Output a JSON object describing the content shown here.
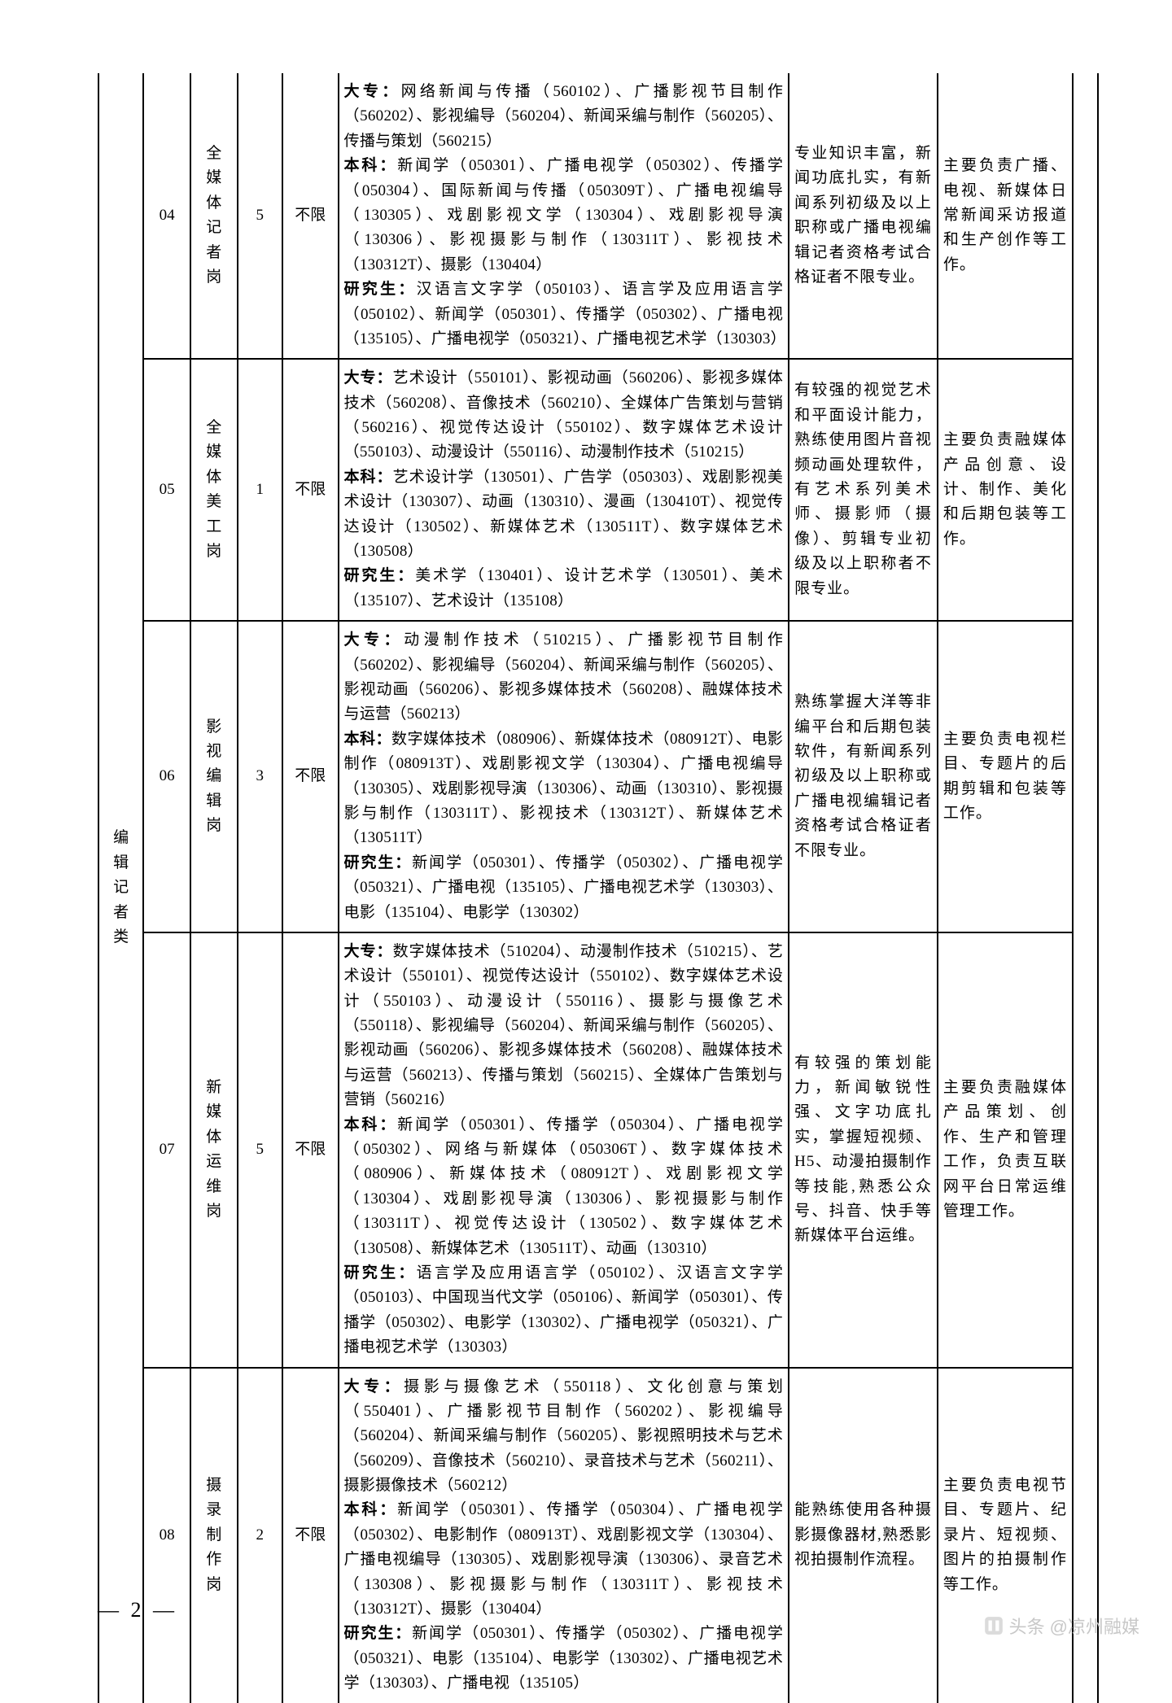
{
  "table": {
    "category": "编辑记者类",
    "rows": [
      {
        "code": "04",
        "post": "全媒体记者岗",
        "count": "5",
        "limit": "不限",
        "major_dz": "网络新闻与传播（560102）、广播影视节目制作（560202）、影视编导（560204）、新闻采编与制作（560205）、传播与策划（560215）",
        "major_bk": "新闻学（050301）、广播电视学（050302）、传播学（050304）、国际新闻与传播（050309T）、广播电视编导（130305）、戏剧影视文学（130304）、戏剧影视导演（130306）、影视摄影与制作（130311T）、影视技术（130312T）、摄影（130404）",
        "major_yjs": "汉语言文字学（050103）、语言学及应用语言学（050102）、新闻学（050301）、传播学（050302）、广播电视（135105）、广播电视学（050321）、广播电视艺术学（130303）",
        "req": "专业知识丰富，新闻功底扎实，有新闻系列初级及以上职称或广播电视编辑记者资格考试合格证者不限专业。",
        "duty": "主要负责广播、电视、新媒体日常新闻采访报道和生产创作等工作。"
      },
      {
        "code": "05",
        "post": "全媒体美工岗",
        "count": "1",
        "limit": "不限",
        "major_dz": "艺术设计（550101）、影视动画（560206）、影视多媒体技术（560208）、音像技术（560210）、全媒体广告策划与营销（560216）、视觉传达设计（550102）、数字媒体艺术设计（550103）、动漫设计（550116）、动漫制作技术（510215）",
        "major_bk": "艺术设计学（130501）、广告学（050303）、戏剧影视美术设计（130307）、动画（130310）、漫画（130410T）、视觉传达设计（130502）、新媒体艺术（130511T）、数字媒体艺术（130508）",
        "major_yjs": "美术学（130401）、设计艺术学（130501）、美术（135107）、艺术设计（135108）",
        "req": "有较强的视觉艺术和平面设计能力，熟练使用图片音视频动画处理软件，有艺术系列美术师、摄影师（摄像）、剪辑专业初级及以上职称者不限专业。",
        "duty": "主要负责融媒体产品创意、设计、制作、美化和后期包装等工作。"
      },
      {
        "code": "06",
        "post": "影视编辑岗",
        "count": "3",
        "limit": "不限",
        "major_dz": "动漫制作技术（510215）、广播影视节目制作（560202）、影视编导（560204）、新闻采编与制作（560205）、影视动画（560206）、影视多媒体技术（560208）、融媒体技术与运营（560213）",
        "major_bk": "数字媒体技术（080906）、新媒体技术（080912T）、电影制作（080913T）、戏剧影视文学（130304）、广播电视编导（130305）、戏剧影视导演（130306）、动画（130310）、影视摄影与制作（130311T）、影视技术（130312T）、新媒体艺术（130511T）",
        "major_yjs": "新闻学（050301）、传播学（050302）、广播电视学（050321）、广播电视（135105）、广播电视艺术学（130303）、电影（135104）、电影学（130302）",
        "req": "熟练掌握大洋等非编平台和后期包装软件，有新闻系列初级及以上职称或广播电视编辑记者资格考试合格证者不限专业。",
        "duty": "主要负责电视栏目、专题片的后期剪辑和包装等工作。"
      },
      {
        "code": "07",
        "post": "新媒体运维岗",
        "count": "5",
        "limit": "不限",
        "major_dz": "数字媒体技术（510204）、动漫制作技术（510215）、艺术设计（550101）、视觉传达设计（550102）、数字媒体艺术设计（550103）、动漫设计（550116）、摄影与摄像艺术（550118）、影视编导（560204）、新闻采编与制作（560205）、影视动画（560206）、影视多媒体技术（560208）、融媒体技术与运营（560213）、传播与策划（560215）、全媒体广告策划与营销（560216）",
        "major_bk": "新闻学（050301）、传播学（050304）、广播电视学（050302）、网络与新媒体（050306T）、数字媒体技术（080906）、新媒体技术（080912T）、戏剧影视文学（130304）、戏剧影视导演（130306）、影视摄影与制作（130311T）、视觉传达设计（130502）、数字媒体艺术（130508）、新媒体艺术（130511T）、动画（130310）",
        "major_yjs": "语言学及应用语言学（050102）、汉语言文字学（050103）、中国现当代文学（050106）、新闻学（050301）、传播学（050302）、电影学（130302）、广播电视学（050321）、广播电视艺术学（130303）",
        "req": "有较强的策划能力，新闻敏锐性强、文字功底扎实，掌握短视频、H5、动漫拍摄制作等技能,熟悉公众号、抖音、快手等新媒体平台运维。",
        "duty": "主要负责融媒体产品策划、创作、生产和管理工作，负责互联网平台日常运维管理工作。"
      },
      {
        "code": "08",
        "post": "摄录制作岗",
        "count": "2",
        "limit": "不限",
        "major_dz": "摄影与摄像艺术（550118）、文化创意与策划（550401）、广播影视节目制作（560202）、影视编导（560204）、新闻采编与制作（560205）、影视照明技术与艺术（560209）、音像技术（560210）、录音技术与艺术（560211）、摄影摄像技术（560212）",
        "major_bk": "新闻学（050301）、传播学（050304）、广播电视学（050302）、电影制作（080913T）、戏剧影视文学（130304）、广播电视编导（130305）、戏剧影视导演（130306）、录音艺术（130308）、影视摄影与制作（130311T）、影视技术（130312T）、摄影（130404）",
        "major_yjs": "新闻学（050301）、传播学（050302）、广播电视学（050321）、电影（135104）、电影学（130302）、广播电视艺术学（130303）、广播电视（135105）",
        "req": "能熟练使用各种摄影摄像器材,熟悉影视拍摄制作流程。",
        "duty": "主要负责电视节目、专题片、纪录片、短视频、图片的拍摄制作等工作。"
      }
    ]
  },
  "labels": {
    "dz": "大专：",
    "bk": "本科：",
    "yjs": "研究生："
  },
  "pageNum": "— 2 —",
  "watermark": {
    "text1": "头条",
    "text2": "@凉州融媒"
  },
  "colors": {
    "border": "#000000",
    "text": "#000000",
    "watermark": "#c8c8c8"
  }
}
